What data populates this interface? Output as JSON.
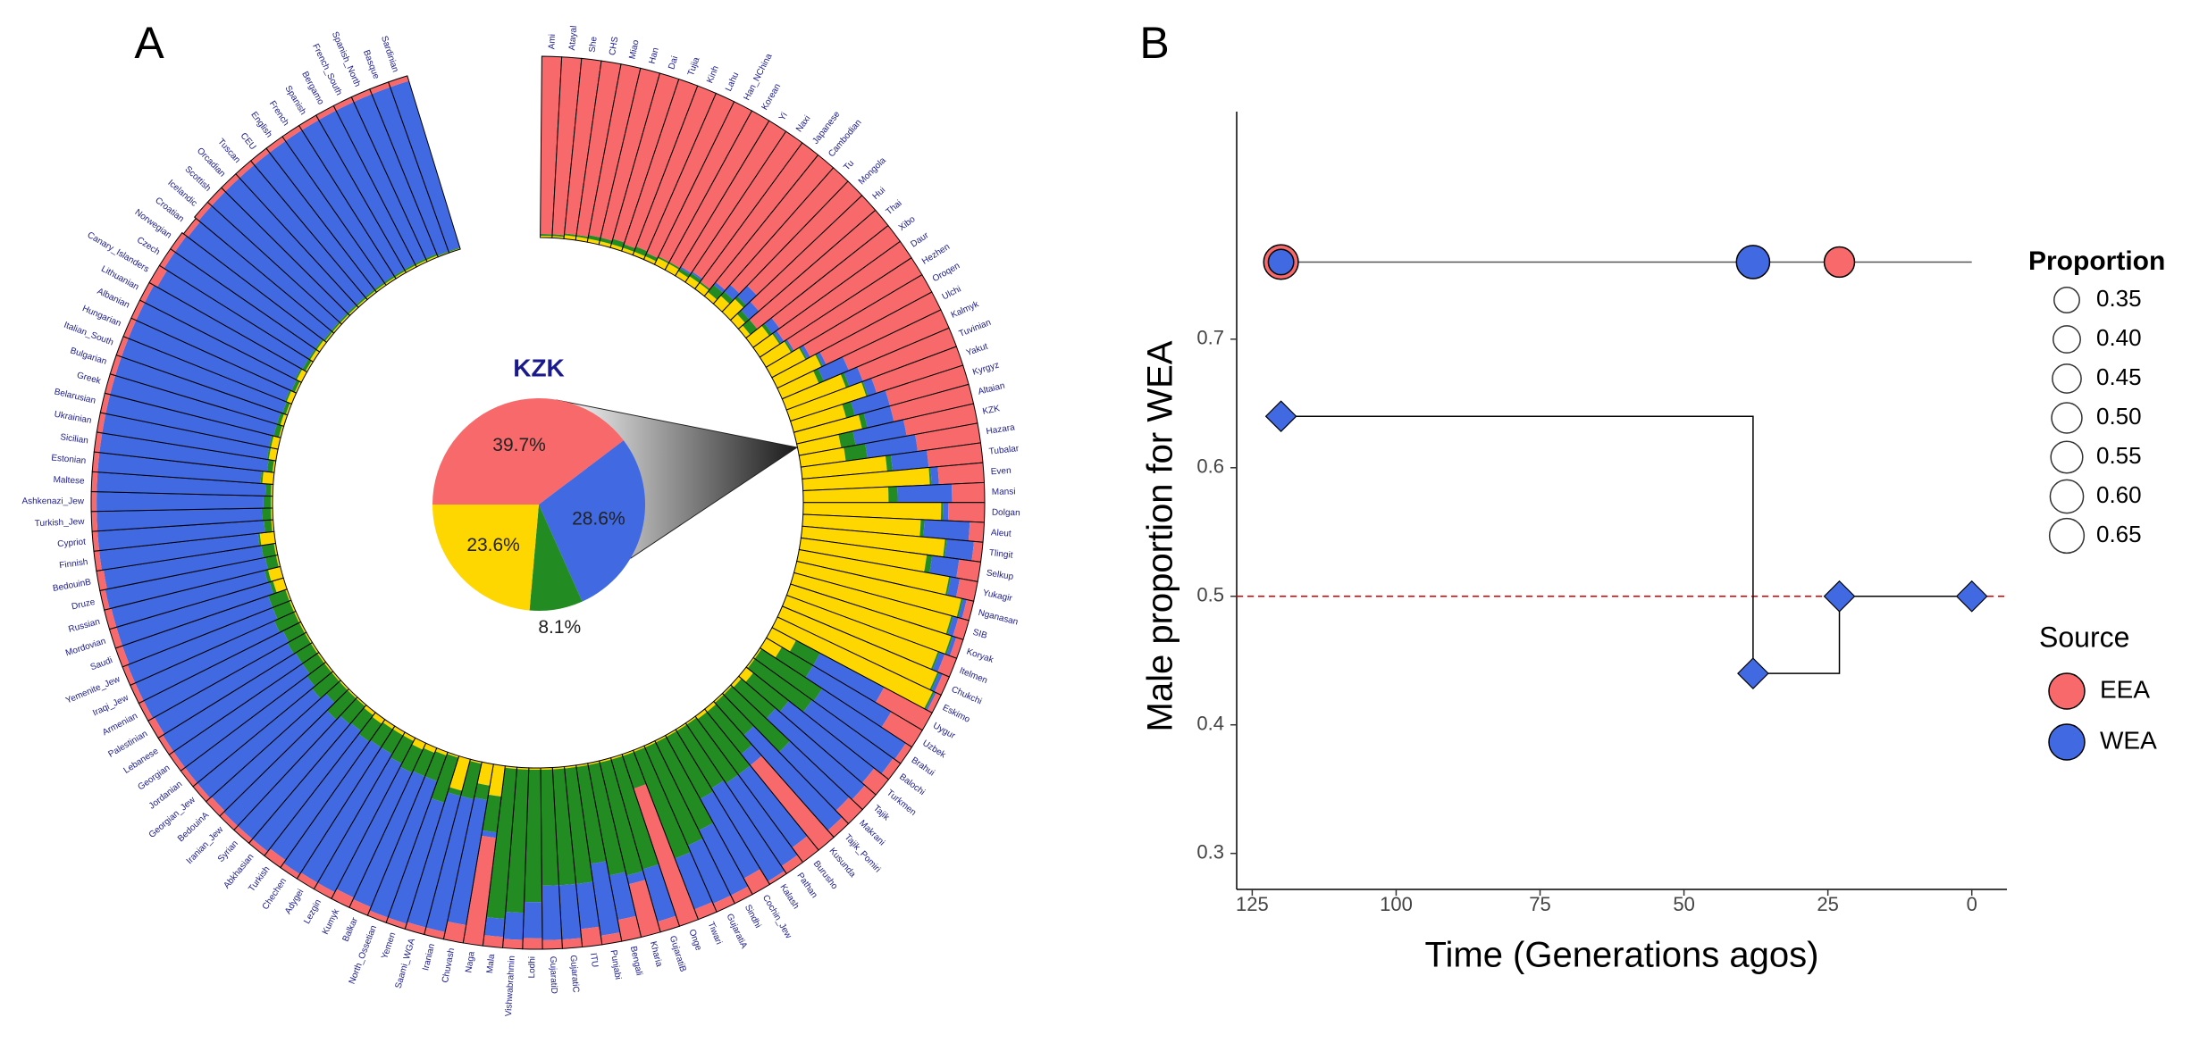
{
  "chart_data": [
    {
      "type": "radial_bar",
      "panel": "A",
      "categories": [
        "Ami",
        "Atayal",
        "She",
        "CHS",
        "Miao",
        "Han",
        "Dai",
        "Tujia",
        "Kinh",
        "Lahu",
        "Han_NChina",
        "Korean",
        "Yi",
        "Naxi",
        "Japanese",
        "Cambodian",
        "Tu",
        "Mongola",
        "Hui",
        "Thai",
        "Xibo",
        "Daur",
        "Hezhen",
        "Oroqen",
        "Ulchi",
        "Kalmyk",
        "Tuvinian",
        "Yakut",
        "Kyrgyz",
        "Altaian",
        "KZK",
        "Hazara",
        "Tubalar",
        "Even",
        "Mansi",
        "Dolgan",
        "Aleut",
        "Tlingit",
        "Selkup",
        "Yukagir",
        "Nganasan",
        "SIB",
        "Koryak",
        "Itelmen",
        "Chukchi",
        "Eskimo",
        "Uygur",
        "Uzbek",
        "Brahui",
        "Balochi",
        "Turkmen",
        "Tajik",
        "Makrani",
        "Tajik_Pomiri",
        "Kusunda",
        "Burusho",
        "Pathan",
        "Kalash",
        "Cochin_Jew",
        "Sindhi",
        "GujaratiA",
        "Tiwari",
        "Onge",
        "GujaratiB",
        "Kharia",
        "Bengali",
        "Punjabi",
        "ITU",
        "GujaratiC",
        "GujaratiD",
        "Lodhi",
        "Vishwabrahmin",
        "Mala",
        "Naga",
        "Chuvash",
        "Iranian",
        "Saami_WGA",
        "Yemen",
        "North_Ossetian",
        "Balkar",
        "Kumyk",
        "Lezgin",
        "Adygei",
        "Chechen",
        "Turkish",
        "Abkhasian",
        "Syrian",
        "Iranian_Jew",
        "BedouinA",
        "Georgian_Jew",
        "Jordanian",
        "Georgian",
        "Lebanese",
        "Palestinian",
        "Armenian",
        "Iraqi_Jew",
        "Yemenite_Jew",
        "Saudi",
        "Mordovian",
        "Russian",
        "Druze",
        "BedouinB",
        "Finnish",
        "Cypriot",
        "Turkish_Jew",
        "Ashkenazi_Jew",
        "Maltese",
        "Estonian",
        "Sicilian",
        "Ukrainian",
        "Belarusian",
        "Greek",
        "Bulgarian",
        "Italian_South",
        "Hungarian",
        "Albanian",
        "Lithuanian",
        "Canary_Islanders",
        "Czech",
        "Norwegian",
        "Croatian",
        "Icelandic",
        "Scottish",
        "Orcadian",
        "Tuscan",
        "CEU",
        "English",
        "French",
        "Spanish",
        "Bergamo",
        "French_South",
        "Spanish_North",
        "Basque",
        "Sardinian"
      ],
      "series": [
        {
          "color": "#ffd700",
          "values": [
            0.01,
            0.01,
            0.02,
            0.02,
            0.02,
            0.02,
            0.02,
            0.02,
            0.02,
            0.02,
            0.04,
            0.04,
            0.03,
            0.04,
            0.04,
            0.03,
            0.06,
            0.1,
            0.05,
            0.03,
            0.11,
            0.13,
            0.16,
            0.21,
            0.27,
            0.22,
            0.35,
            0.44,
            0.3,
            0.37,
            0.236,
            0.25,
            0.47,
            0.7,
            0.47,
            0.76,
            0.65,
            0.79,
            0.7,
            0.84,
            0.93,
            0.9,
            0.93,
            0.89,
            0.93,
            0.95,
            0.15,
            0.1,
            0.01,
            0.01,
            0.05,
            0.02,
            0.01,
            0.01,
            0.02,
            0.02,
            0.01,
            0.01,
            0.01,
            0.01,
            0.01,
            0.01,
            0.01,
            0.01,
            0.01,
            0.01,
            0.01,
            0.01,
            0.01,
            0.01,
            0.01,
            0.01,
            0.01,
            0.17,
            0.12,
            0.01,
            0.18,
            0.01,
            0.02,
            0.03,
            0.04,
            0.02,
            0.02,
            0.02,
            0.03,
            0.02,
            0.01,
            0.01,
            0.01,
            0.01,
            0.01,
            0.01,
            0.01,
            0.01,
            0.01,
            0.01,
            0.01,
            0.01,
            0.06,
            0.07,
            0.01,
            0.01,
            0.08,
            0.01,
            0.01,
            0.01,
            0.01,
            0.06,
            0.01,
            0.04,
            0.04,
            0.01,
            0.02,
            0.01,
            0.03,
            0.01,
            0.03,
            0.01,
            0.02,
            0.02,
            0.01,
            0.01,
            0.01,
            0.01,
            0.01,
            0.01,
            0.01,
            0.01,
            0.01,
            0.01,
            0.01,
            0.01,
            0.005,
            0.005
          ]
        },
        {
          "color": "#228b22",
          "values": [
            0.01,
            0.01,
            0.01,
            0.01,
            0.02,
            0.02,
            0.03,
            0.02,
            0.03,
            0.02,
            0.01,
            0.01,
            0.02,
            0.02,
            0.01,
            0.05,
            0.03,
            0.02,
            0.03,
            0.05,
            0.02,
            0.01,
            0.01,
            0.01,
            0.01,
            0.03,
            0.02,
            0.01,
            0.05,
            0.03,
            0.081,
            0.12,
            0.03,
            0.01,
            0.05,
            0.01,
            0.02,
            0.01,
            0.03,
            0.01,
            0.01,
            0.01,
            0.01,
            0.01,
            0.01,
            0.01,
            0.15,
            0.2,
            0.4,
            0.39,
            0.25,
            0.25,
            0.44,
            0.24,
            0.3,
            0.38,
            0.39,
            0.37,
            0.39,
            0.54,
            0.59,
            0.63,
            0.19,
            0.63,
            0.64,
            0.62,
            0.54,
            0.64,
            0.64,
            0.64,
            0.73,
            0.79,
            0.83,
            0.2,
            0.08,
            0.2,
            0.03,
            0.26,
            0.15,
            0.14,
            0.14,
            0.14,
            0.12,
            0.12,
            0.12,
            0.11,
            0.13,
            0.16,
            0.1,
            0.14,
            0.12,
            0.1,
            0.1,
            0.11,
            0.1,
            0.12,
            0.1,
            0.1,
            0.02,
            0.02,
            0.06,
            0.07,
            0.01,
            0.04,
            0.05,
            0.04,
            0.03,
            0.01,
            0.03,
            0.01,
            0.01,
            0.03,
            0.02,
            0.02,
            0.01,
            0.02,
            0.01,
            0.02,
            0.01,
            0.01,
            0.01,
            0.01,
            0.01,
            0.01,
            0.01,
            0.01,
            0.01,
            0.01,
            0.01,
            0.01,
            0.01,
            0.01,
            0.005,
            0.005
          ]
        },
        {
          "color": "#4169e1",
          "values": [
            0,
            0,
            0,
            0,
            0,
            0,
            0,
            0,
            0,
            0,
            0,
            0,
            0.01,
            0.01,
            0,
            0.02,
            0.05,
            0.08,
            0.07,
            0,
            0.05,
            0.02,
            0.01,
            0.02,
            0.02,
            0.15,
            0.08,
            0.05,
            0.2,
            0.15,
            0.286,
            0.28,
            0.2,
            0.04,
            0.3,
            0.03,
            0.25,
            0.15,
            0.15,
            0.05,
            0.02,
            0.03,
            0.02,
            0.03,
            0.02,
            0.01,
            0.4,
            0.5,
            0.55,
            0.55,
            0.6,
            0.65,
            0.45,
            0.7,
            0.08,
            0.5,
            0.55,
            0.6,
            0.5,
            0.4,
            0.35,
            0.3,
            0,
            0.3,
            0.05,
            0.25,
            0.4,
            0.25,
            0.3,
            0.3,
            0.2,
            0.15,
            0.1,
            0.03,
            0.7,
            0.75,
            0.75,
            0.7,
            0.8,
            0.78,
            0.76,
            0.8,
            0.82,
            0.83,
            0.8,
            0.84,
            0.83,
            0.8,
            0.85,
            0.82,
            0.84,
            0.86,
            0.86,
            0.84,
            0.86,
            0.84,
            0.86,
            0.85,
            0.88,
            0.87,
            0.9,
            0.88,
            0.88,
            0.92,
            0.91,
            0.92,
            0.93,
            0.9,
            0.93,
            0.92,
            0.92,
            0.93,
            0.93,
            0.94,
            0.93,
            0.94,
            0.93,
            0.92,
            0.94,
            0.94,
            0.94,
            0.95,
            0.95,
            0.95,
            0.95,
            0.95,
            0.95,
            0.95,
            0.95,
            0.95,
            0.95,
            0.95,
            0.96,
            0.96
          ]
        },
        {
          "color": "#f8696b",
          "values": [
            0.98,
            0.98,
            0.97,
            0.97,
            0.96,
            0.96,
            0.95,
            0.96,
            0.95,
            0.96,
            0.95,
            0.95,
            0.94,
            0.93,
            0.95,
            0.9,
            0.86,
            0.8,
            0.85,
            0.92,
            0.82,
            0.84,
            0.82,
            0.76,
            0.7,
            0.6,
            0.55,
            0.5,
            0.45,
            0.45,
            0.397,
            0.35,
            0.3,
            0.25,
            0.18,
            0.2,
            0.08,
            0.05,
            0.12,
            0.1,
            0.04,
            0.06,
            0.04,
            0.07,
            0.04,
            0.03,
            0.3,
            0.2,
            0.04,
            0.05,
            0.1,
            0.08,
            0.1,
            0.05,
            0.6,
            0.1,
            0.05,
            0.02,
            0.1,
            0.05,
            0.05,
            0.06,
            0.8,
            0.06,
            0.3,
            0.12,
            0.05,
            0.1,
            0.05,
            0.05,
            0.06,
            0.05,
            0.06,
            0.6,
            0.1,
            0.04,
            0.04,
            0.03,
            0.03,
            0.05,
            0.06,
            0.04,
            0.04,
            0.03,
            0.05,
            0.03,
            0.03,
            0.03,
            0.04,
            0.03,
            0.03,
            0.03,
            0.03,
            0.04,
            0.03,
            0.03,
            0.03,
            0.04,
            0.04,
            0.04,
            0.03,
            0.04,
            0.03,
            0.03,
            0.03,
            0.03,
            0.03,
            0.03,
            0.03,
            0.03,
            0.03,
            0.03,
            0.03,
            0.03,
            0.03,
            0.03,
            0.03,
            0.05,
            0.03,
            0.03,
            0.03,
            0.03,
            0.03,
            0.03,
            0.03,
            0.03,
            0.03,
            0.03,
            0.03,
            0.03,
            0.03,
            0.03,
            0.03,
            0.03
          ]
        }
      ]
    },
    {
      "type": "pie",
      "title": "KZK",
      "values": [
        39.7,
        28.6,
        8.1,
        23.6
      ],
      "value_labels": [
        "39.7%",
        "28.6%",
        "8.1%",
        "23.6%"
      ],
      "colors": [
        "#f8696b",
        "#4169e1",
        "#228b22",
        "#ffd700"
      ]
    },
    {
      "type": "bubble_step",
      "panel": "B",
      "xlabel": "Time (Generations agos)",
      "ylabel": "Male proportion for WEA",
      "xlim": [
        127.7,
        -6.1
      ],
      "ylim": [
        0.272,
        0.877
      ],
      "xticks": [
        125,
        100,
        75,
        50,
        25,
        0
      ],
      "yticks": [
        0.3,
        0.4,
        0.5,
        0.6,
        0.7
      ],
      "hline": 0.5,
      "hline_color": "#cc0000",
      "step_series": {
        "color": "#4169e1",
        "x": [
          120,
          38,
          23,
          0
        ],
        "values": [
          0.64,
          0.44,
          0.5,
          0.5
        ]
      },
      "track": {
        "x": [
          120,
          0
        ],
        "values": [
          0.76,
          0.76
        ]
      },
      "bubble_series": [
        {
          "x": [
            120,
            23
          ],
          "values": [
            0.76,
            0.76
          ],
          "sizes": [
            0.65,
            0.5
          ]
        },
        {
          "x": [
            120,
            38
          ],
          "values": [
            0.76,
            0.76
          ],
          "sizes": [
            0.35,
            0.6
          ]
        }
      ],
      "size_legend": {
        "title": "Proportion",
        "values": [
          0.35,
          {
            "value": 0.4,
            "label": "0.40"
          },
          0.45,
          {
            "value": 0.5,
            "label": "0.50"
          },
          0.55,
          {
            "value": 0.6,
            "label": "0.60"
          },
          0.65
        ]
      },
      "color_legend": {
        "title": "Source",
        "items": [
          {
            "name": "EEA",
            "color": "#f8696b"
          },
          {
            "name": "WEA",
            "color": "#4169e1"
          }
        ]
      }
    }
  ]
}
